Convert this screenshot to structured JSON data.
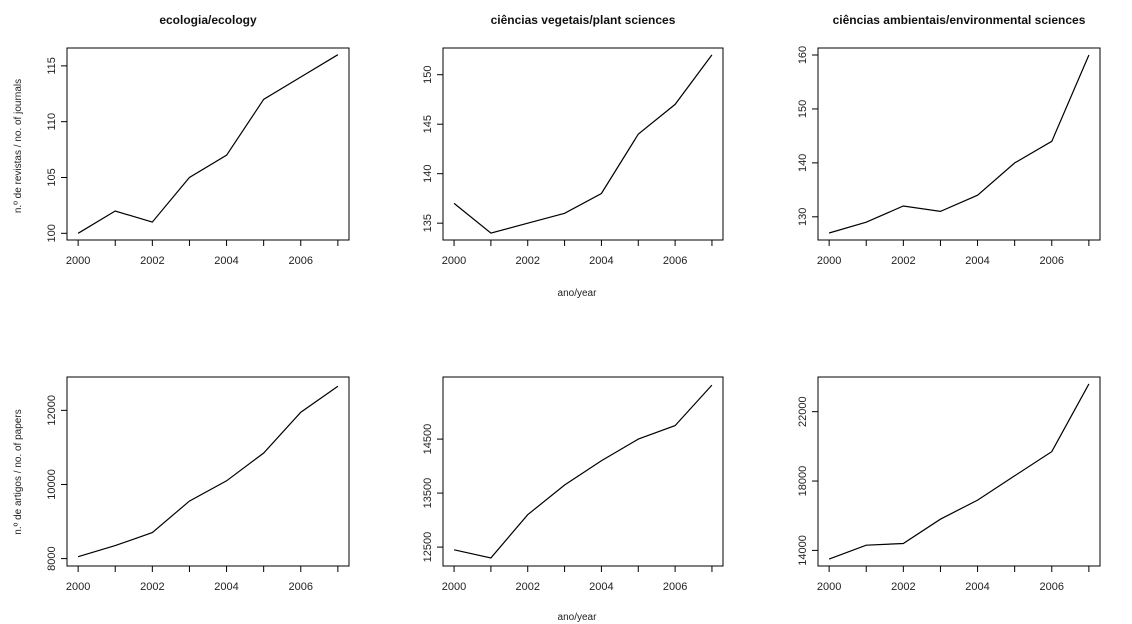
{
  "figure": {
    "xlabel_top": "ano/year",
    "xlabel_bottom": "ano/year",
    "ylabel_top": "n.º de revistas / no. of journals",
    "ylabel_bottom": "n.º de artigos / no. of papers"
  },
  "chart_data": [
    {
      "type": "line",
      "title": "ecologia/ecology",
      "x": [
        2000,
        2001,
        2002,
        2003,
        2004,
        2005,
        2006,
        2007
      ],
      "series": [
        {
          "values": [
            100,
            102,
            101,
            105,
            107,
            112,
            114,
            116
          ]
        }
      ],
      "xticks": [
        2000,
        2002,
        2004,
        2006
      ],
      "xtick_labels": [
        "2000",
        "2002",
        "2004",
        "2006"
      ],
      "yticks": [
        100,
        105,
        110,
        115
      ],
      "ytick_labels": [
        "100",
        "105",
        "110",
        "115"
      ],
      "xlim": [
        1999.7,
        2007.3
      ],
      "ylim": [
        99.4,
        116.6
      ]
    },
    {
      "type": "line",
      "title": "ciências vegetais/plant sciences",
      "x": [
        2000,
        2001,
        2002,
        2003,
        2004,
        2005,
        2006,
        2007
      ],
      "series": [
        {
          "values": [
            137,
            134,
            135,
            136,
            138,
            144,
            147,
            152
          ]
        }
      ],
      "xticks": [
        2000,
        2002,
        2004,
        2006
      ],
      "xtick_labels": [
        "2000",
        "2002",
        "2004",
        "2006"
      ],
      "yticks": [
        135,
        140,
        145,
        150
      ],
      "ytick_labels": [
        "135",
        "140",
        "145",
        "150"
      ],
      "xlim": [
        1999.7,
        2007.3
      ],
      "ylim": [
        133.3,
        152.7
      ]
    },
    {
      "type": "line",
      "title": "ciências ambientais/environmental sciences",
      "x": [
        2000,
        2001,
        2002,
        2003,
        2004,
        2005,
        2006,
        2007
      ],
      "series": [
        {
          "values": [
            127,
            129,
            132,
            131,
            134,
            140,
            144,
            160
          ]
        }
      ],
      "xticks": [
        2000,
        2002,
        2004,
        2006
      ],
      "xtick_labels": [
        "2000",
        "2002",
        "2004",
        "2006"
      ],
      "yticks": [
        130,
        140,
        150,
        160
      ],
      "ytick_labels": [
        "130",
        "140",
        "150",
        "160"
      ],
      "xlim": [
        1999.7,
        2007.3
      ],
      "ylim": [
        125.7,
        161.3
      ]
    },
    {
      "type": "line",
      "title": "",
      "x": [
        2000,
        2001,
        2002,
        2003,
        2004,
        2005,
        2006,
        2007
      ],
      "series": [
        {
          "values": [
            8050,
            8350,
            8700,
            9550,
            10100,
            10850,
            11950,
            12650
          ]
        }
      ],
      "xticks": [
        2000,
        2002,
        2004,
        2006
      ],
      "xtick_labels": [
        "2000",
        "2002",
        "2004",
        "2006"
      ],
      "yticks": [
        8000,
        10000,
        12000
      ],
      "ytick_labels": [
        "8000",
        "10000",
        "12000"
      ],
      "xlim": [
        1999.7,
        2007.3
      ],
      "ylim": [
        7800,
        12900
      ]
    },
    {
      "type": "line",
      "title": "",
      "x": [
        2000,
        2001,
        2002,
        2003,
        2004,
        2005,
        2006,
        2007
      ],
      "series": [
        {
          "values": [
            12450,
            12300,
            13100,
            13650,
            14100,
            14500,
            14750,
            15500
          ]
        }
      ],
      "xticks": [
        2000,
        2002,
        2004,
        2006
      ],
      "xtick_labels": [
        "2000",
        "2002",
        "2004",
        "2006"
      ],
      "yticks": [
        12500,
        13500,
        14500
      ],
      "ytick_labels": [
        "12500",
        "13500",
        "14500"
      ],
      "xlim": [
        1999.7,
        2007.3
      ],
      "ylim": [
        12150,
        15650
      ]
    },
    {
      "type": "line",
      "title": "",
      "x": [
        2000,
        2001,
        2002,
        2003,
        2004,
        2005,
        2006,
        2007
      ],
      "series": [
        {
          "values": [
            13500,
            14300,
            14400,
            15800,
            16900,
            18300,
            19700,
            23600
          ]
        }
      ],
      "xticks": [
        2000,
        2002,
        2004,
        2006
      ],
      "xtick_labels": [
        "2000",
        "2002",
        "2004",
        "2006"
      ],
      "yticks": [
        14000,
        18000,
        22000
      ],
      "ytick_labels": [
        "14000",
        "18000",
        "22000"
      ],
      "xlim": [
        1999.7,
        2007.3
      ],
      "ylim": [
        13100,
        24000
      ]
    }
  ]
}
